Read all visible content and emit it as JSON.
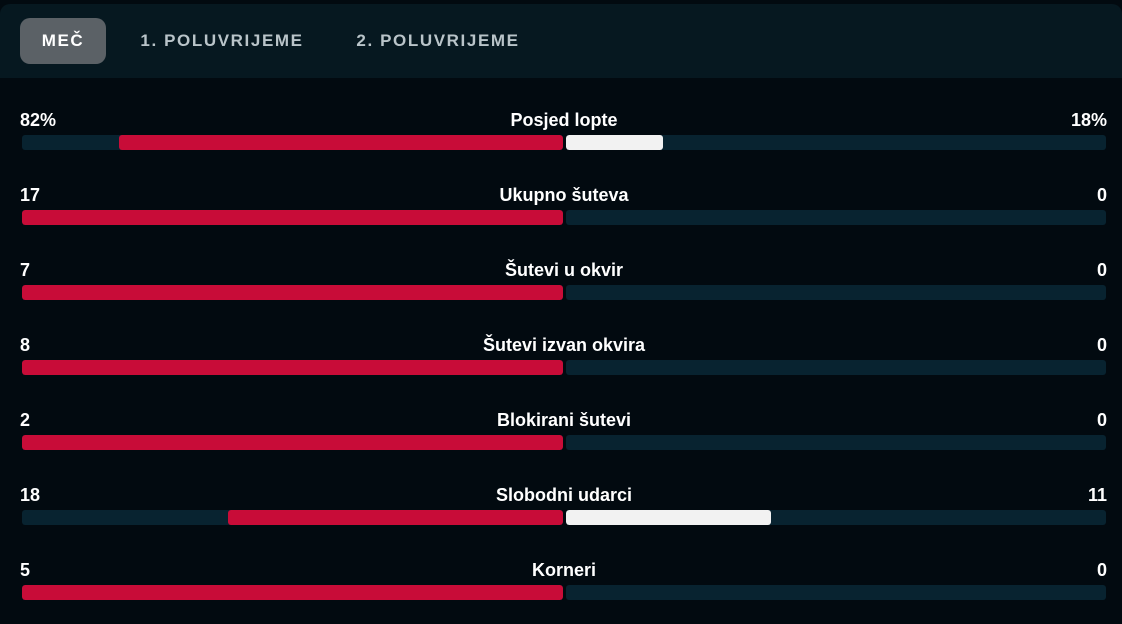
{
  "tabs": [
    {
      "label": "MEČ",
      "active": true
    },
    {
      "label": "1. POLUVRIJEME",
      "active": false
    },
    {
      "label": "2. POLUVRIJEME",
      "active": false
    }
  ],
  "colors": {
    "home": "#c80c38",
    "away": "#f2f2f2",
    "track": "#082330",
    "background": "#020a10"
  },
  "stats": [
    {
      "label": "Posjed lopte",
      "home": "82%",
      "away": "18%",
      "home_share": 0.82,
      "away_share": 0.18
    },
    {
      "label": "Ukupno šuteva",
      "home": "17",
      "away": "0",
      "home_share": 1.0,
      "away_share": 0.0
    },
    {
      "label": "Šutevi u okvir",
      "home": "7",
      "away": "0",
      "home_share": 1.0,
      "away_share": 0.0
    },
    {
      "label": "Šutevi izvan okvira",
      "home": "8",
      "away": "0",
      "home_share": 1.0,
      "away_share": 0.0
    },
    {
      "label": "Blokirani šutevi",
      "home": "2",
      "away": "0",
      "home_share": 1.0,
      "away_share": 0.0
    },
    {
      "label": "Slobodni udarci",
      "home": "18",
      "away": "11",
      "home_share": 0.62,
      "away_share": 0.38
    },
    {
      "label": "Korneri",
      "home": "5",
      "away": "0",
      "home_share": 1.0,
      "away_share": 0.0
    }
  ]
}
